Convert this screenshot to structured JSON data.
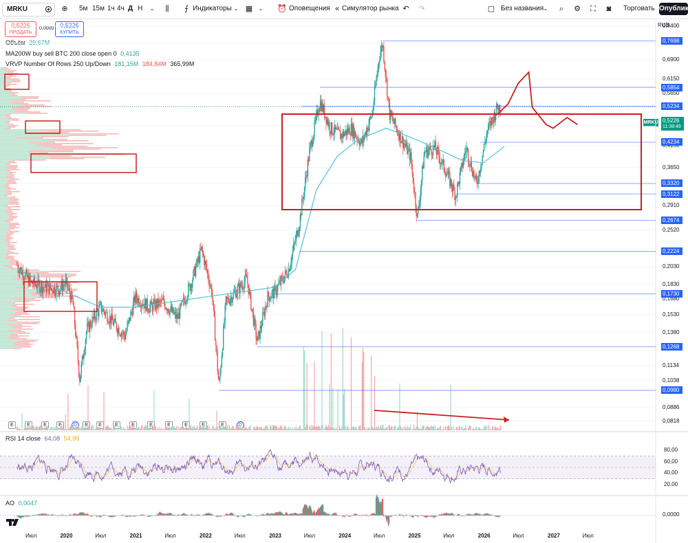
{
  "toolbar": {
    "symbol": "MRKU",
    "timeframes": [
      "5м",
      "15м",
      "1ч",
      "4ч",
      "Д",
      "Н"
    ],
    "indicators_label": "Индикаторы",
    "alerts_label": "Оповещения",
    "replay_label": "Симулятор рынка",
    "layout_name": "Без названия",
    "trade_label": "Торговать",
    "publish_label": "Опублик"
  },
  "order": {
    "sell_price": "0,5226",
    "sell_label": "ПРОДАТЬ",
    "spread": "0,0000",
    "buy_price": "0,5226",
    "buy_label": "КУПИТЬ"
  },
  "legends": {
    "volume_label": "Объём",
    "volume_value": "29,67М",
    "ma_label": "MA200W buy sell BTC 200 close open 0",
    "ma_value": "0,4135",
    "vrvp_label": "VRVP Number Of Rows 250 Up/Down",
    "vrvp_up": "181,15М",
    "vrvp_down": "184,84М",
    "vrvp_total": "365,99М",
    "rsi_label": "RSI 14 close",
    "rsi_value": "64,08",
    "rsi_ma": "54,99",
    "ao_label": "AO",
    "ao_value": "0,0047"
  },
  "price_axis": {
    "currency": "RUB",
    "ticks": [
      "0,8400",
      "0,7600",
      "0,6900",
      "0,6150",
      "0,5650",
      "0,4650",
      "0,4150",
      "0,3650",
      "0,3320",
      "0,2910",
      "0,2520",
      "0,2030",
      "0,1830",
      "0,1680",
      "0,1530",
      "0,1380",
      "0,1134",
      "0,1038",
      "0,0886",
      "0,0818"
    ],
    "current_price": "0,5226",
    "current_time": "11:39:49",
    "symbol_tag": "MRKU"
  },
  "level_labels": [
    "0,7698",
    "0,5854",
    "0,5234",
    "0,4234",
    "0,3320",
    "0,3122",
    "0,2674",
    "0,2224",
    "0,1730",
    "0,1268",
    "0,0980"
  ],
  "rsi_axis": [
    "80,00",
    "60,00",
    "40,00",
    "20,00"
  ],
  "ao_axis": [
    "0,0000"
  ],
  "time_axis": [
    "Июл",
    "2020",
    "Июл",
    "2021",
    "Июл",
    "2022",
    "Июл",
    "2023",
    "Июл",
    "2024",
    "Июл",
    "2025",
    "Июл",
    "2026",
    "Июл",
    "2027",
    "Июл"
  ],
  "event_markers": [
    "E",
    "E",
    "E",
    "E",
    "D",
    "E",
    "E",
    "E",
    "E",
    "E",
    "E",
    "E",
    "E",
    "E",
    "D",
    "D"
  ],
  "colors": {
    "up": "#26a69a",
    "down": "#ef5350",
    "ma": "#4fc3d7",
    "annotation": "#c81e1e",
    "level_line": "#2962ff",
    "level_bg": "#2962ff",
    "rsi": "#7e57c2",
    "rsi_ma": "#f7c845",
    "current": "#089981"
  },
  "chart_data": {
    "type": "candlestick",
    "title": "MRKU",
    "xlabel": "",
    "ylabel": "",
    "ylim": [
      0.08,
      0.84
    ],
    "y_scale": "log",
    "grid": true,
    "series": [
      {
        "name": "MRKU",
        "points": [
          [
            2019.3,
            0.205
          ],
          [
            2019.5,
            0.185
          ],
          [
            2019.7,
            0.18
          ],
          [
            2019.9,
            0.178
          ],
          [
            2020.0,
            0.185
          ],
          [
            2020.1,
            0.165
          ],
          [
            2020.2,
            0.105
          ],
          [
            2020.3,
            0.14
          ],
          [
            2020.5,
            0.16
          ],
          [
            2020.7,
            0.145
          ],
          [
            2020.85,
            0.135
          ],
          [
            2021.0,
            0.17
          ],
          [
            2021.2,
            0.16
          ],
          [
            2021.4,
            0.165
          ],
          [
            2021.6,
            0.15
          ],
          [
            2021.8,
            0.185
          ],
          [
            2021.95,
            0.225
          ],
          [
            2022.1,
            0.175
          ],
          [
            2022.2,
            0.1
          ],
          [
            2022.3,
            0.165
          ],
          [
            2022.5,
            0.18
          ],
          [
            2022.6,
            0.19
          ],
          [
            2022.75,
            0.13
          ],
          [
            2022.9,
            0.17
          ],
          [
            2023.0,
            0.175
          ],
          [
            2023.2,
            0.2
          ],
          [
            2023.35,
            0.26
          ],
          [
            2023.5,
            0.4
          ],
          [
            2023.65,
            0.54
          ],
          [
            2023.8,
            0.46
          ],
          [
            2023.95,
            0.44
          ],
          [
            2024.1,
            0.46
          ],
          [
            2024.25,
            0.42
          ],
          [
            2024.4,
            0.5
          ],
          [
            2024.5,
            0.7
          ],
          [
            2024.55,
            0.76
          ],
          [
            2024.65,
            0.5
          ],
          [
            2024.8,
            0.44
          ],
          [
            2024.95,
            0.39
          ],
          [
            2025.05,
            0.27
          ],
          [
            2025.15,
            0.4
          ],
          [
            2025.3,
            0.41
          ],
          [
            2025.45,
            0.36
          ],
          [
            2025.6,
            0.31
          ],
          [
            2025.75,
            0.41
          ],
          [
            2025.9,
            0.33
          ],
          [
            2026.05,
            0.45
          ],
          [
            2026.2,
            0.52
          ],
          [
            2026.25,
            0.5226
          ]
        ]
      },
      {
        "name": "MA200W",
        "points": [
          [
            2019.3,
            0.2
          ],
          [
            2020.0,
            0.175
          ],
          [
            2020.5,
            0.16
          ],
          [
            2021.0,
            0.16
          ],
          [
            2021.5,
            0.165
          ],
          [
            2022.0,
            0.17
          ],
          [
            2022.5,
            0.175
          ],
          [
            2023.0,
            0.18
          ],
          [
            2023.3,
            0.2
          ],
          [
            2023.6,
            0.32
          ],
          [
            2023.9,
            0.39
          ],
          [
            2024.2,
            0.43
          ],
          [
            2024.6,
            0.46
          ],
          [
            2024.9,
            0.44
          ],
          [
            2025.3,
            0.41
          ],
          [
            2025.7,
            0.38
          ],
          [
            2026.0,
            0.375
          ],
          [
            2026.3,
            0.4135
          ]
        ]
      },
      {
        "name": "forecast",
        "points": [
          [
            2026.2,
            0.5
          ],
          [
            2026.35,
            0.53
          ],
          [
            2026.5,
            0.6
          ],
          [
            2026.65,
            0.64
          ],
          [
            2026.7,
            0.52
          ],
          [
            2026.9,
            0.47
          ],
          [
            2027.0,
            0.46
          ],
          [
            2027.2,
            0.49
          ],
          [
            2027.35,
            0.47
          ]
        ]
      }
    ],
    "levels": [
      0.7698,
      0.5854,
      0.5234,
      0.4234,
      0.332,
      0.3122,
      0.2674,
      0.2224,
      0.173,
      0.1268,
      0.098
    ],
    "rsi": {
      "name": "RSI 14 close",
      "last": 64.08,
      "ma_last": 54.99,
      "ylim": [
        0,
        100
      ],
      "band": [
        30,
        70
      ]
    },
    "ao": {
      "name": "AO",
      "last": 0.0047
    }
  }
}
